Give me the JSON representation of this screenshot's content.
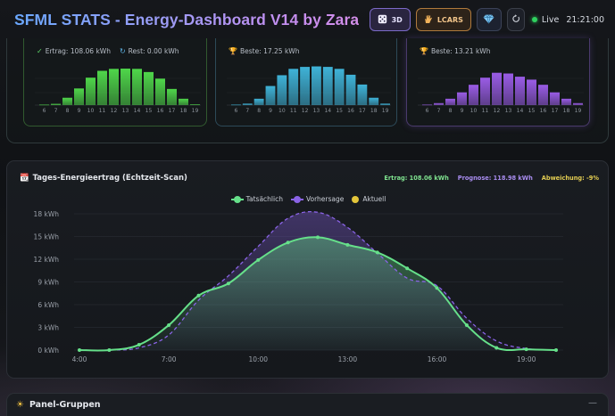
{
  "header": {
    "title": "SFML STATS - Energy-Dashboard V14 by Zara",
    "btn_3d": "3D",
    "btn_lcars": "LCARS",
    "live_label": "Live",
    "time": "21:21:00"
  },
  "mini_charts": [
    {
      "name": "ertrag",
      "label_a": "Ertrag: 108.06 kWh",
      "label_b": "Rest: 0.00 kWh",
      "color": "#4fd64a",
      "hours": [
        "6",
        "7",
        "8",
        "9",
        "10",
        "11",
        "12",
        "13",
        "14",
        "15",
        "16",
        "17",
        "18",
        "19"
      ],
      "values": [
        0.2,
        0.5,
        3.0,
        6.8,
        11.2,
        14.0,
        14.8,
        14.9,
        14.8,
        13.5,
        10.8,
        6.6,
        2.6,
        0.3
      ]
    },
    {
      "name": "beste-1",
      "label_a": "Beste: 17.25 kWh",
      "label_b": "",
      "color": "#3fb3d8",
      "hours": [
        "6",
        "7",
        "8",
        "9",
        "10",
        "11",
        "12",
        "13",
        "14",
        "15",
        "16",
        "17",
        "18",
        "19"
      ],
      "values": [
        0.2,
        0.6,
        2.6,
        7.8,
        12.2,
        14.8,
        15.6,
        15.8,
        15.6,
        14.8,
        12.4,
        8.4,
        3.0,
        0.6
      ]
    },
    {
      "name": "beste-2",
      "label_a": "Beste: 13.21 kWh",
      "label_b": "",
      "color": "#9a5ce6",
      "hours": [
        "6",
        "7",
        "8",
        "9",
        "10",
        "11",
        "12",
        "13",
        "14",
        "15",
        "16",
        "17",
        "18",
        "19"
      ],
      "values": [
        0.2,
        0.8,
        2.6,
        5.2,
        8.3,
        11.2,
        13.2,
        12.9,
        11.6,
        10.4,
        8.3,
        5.2,
        2.6,
        0.8
      ]
    }
  ],
  "main_chart": {
    "title": "Tages-Energieertrag (Echtzeit-Scan)",
    "stat_ertrag": "Ertrag: 108.06 kWh",
    "stat_prognose": "Prognose: 118.98 kWh",
    "stat_abweichung": "Abweichung: -9%",
    "legend_actual": "Tatsächlich",
    "legend_forecast": "Vorhersage",
    "legend_current": "Aktuell",
    "colors": {
      "actual": "#66e08a",
      "forecast": "#8a63e6",
      "current": "#e3c53a"
    }
  },
  "chart_data": {
    "type": "area",
    "title": "Tages-Energieertrag (Echtzeit-Scan)",
    "y_unit": "kWh",
    "ylim": [
      0,
      18
    ],
    "y_ticks": [
      "0 kWh",
      "3 kWh",
      "6 kWh",
      "9 kWh",
      "12 kWh",
      "15 kWh",
      "18 kWh"
    ],
    "x_ticks": [
      "4:00",
      "7:00",
      "10:00",
      "13:00",
      "16:00",
      "19:00"
    ],
    "x_hours": [
      4,
      5,
      6,
      7,
      8,
      9,
      10,
      11,
      12,
      13,
      14,
      15,
      16,
      17,
      18,
      19,
      20
    ],
    "series": [
      {
        "name": "Tatsächlich",
        "values": [
          0.0,
          0.0,
          0.7,
          3.3,
          7.2,
          8.8,
          11.9,
          14.2,
          14.9,
          13.9,
          12.9,
          10.8,
          8.2,
          3.3,
          0.3,
          0.1,
          0.0
        ]
      },
      {
        "name": "Vorhersage",
        "values": [
          0.0,
          0.0,
          0.3,
          2.0,
          6.6,
          9.8,
          13.7,
          17.4,
          18.2,
          16.2,
          12.8,
          9.5,
          8.5,
          4.2,
          1.2,
          0.2,
          0.0
        ]
      }
    ],
    "grid": true,
    "legend": "top-center"
  },
  "groups_panel": {
    "title": "Panel-Gruppen",
    "collapse_glyph": "—"
  }
}
